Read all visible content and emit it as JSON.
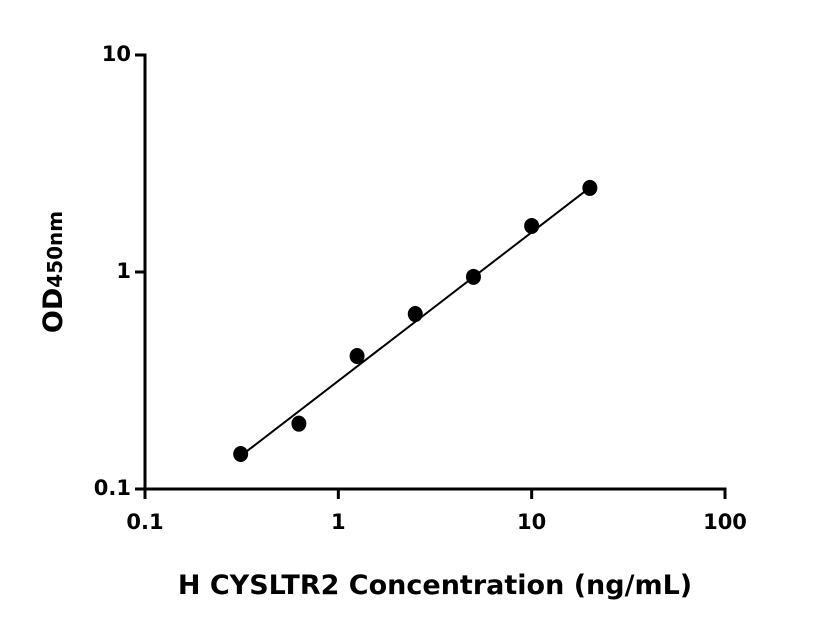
{
  "chart_data": {
    "type": "scatter",
    "x_label": "H CYSLTR2 Concentration (ng/mL)",
    "y_label": "OD",
    "y_label_sub": "450nm",
    "x": [
      0.3125,
      0.625,
      1.25,
      2.5,
      5,
      10,
      20
    ],
    "values": [
      0.145,
      0.2,
      0.41,
      0.64,
      0.95,
      1.63,
      2.44
    ],
    "color": "#000000",
    "fit": {
      "x": [
        0.3125,
        20
      ],
      "y": [
        0.142,
        2.45
      ]
    },
    "xlim": [
      0.1,
      100
    ],
    "ylim": [
      0.1,
      10
    ],
    "xticks": [
      0.1,
      1,
      10,
      100
    ],
    "yticks": [
      0.1,
      1,
      10
    ],
    "xlog": true,
    "ylog": true,
    "grid": false
  }
}
